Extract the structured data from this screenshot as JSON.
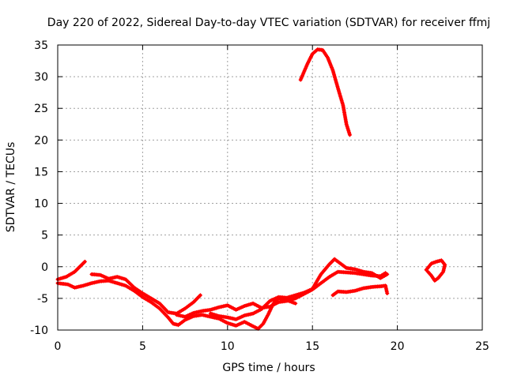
{
  "chart_data": {
    "type": "scatter",
    "title": "Day 220 of 2022, Sidereal Day-to-day VTEC variation (SDTVAR) for receiver ffmj",
    "xlabel": "GPS time / hours",
    "ylabel": "SDTVAR / TECUs",
    "xlim": [
      0,
      25
    ],
    "ylim": [
      -10,
      35
    ],
    "xticks": [
      0,
      5,
      10,
      15,
      20,
      25
    ],
    "yticks": [
      -10,
      -5,
      0,
      5,
      10,
      15,
      20,
      25,
      30,
      35
    ],
    "grid": true,
    "marker": "+",
    "series_color": "#ff0000",
    "series": [
      {
        "values": [
          [
            0.0,
            -2.0
          ],
          [
            0.5,
            -1.6
          ],
          [
            1.0,
            -0.8
          ],
          [
            1.3,
            0.0
          ],
          [
            1.6,
            0.8
          ]
        ]
      },
      {
        "values": [
          [
            0.0,
            -2.6
          ],
          [
            0.6,
            -2.8
          ],
          [
            1.0,
            -3.3
          ],
          [
            1.5,
            -3.0
          ],
          [
            2.0,
            -2.6
          ],
          [
            2.5,
            -2.3
          ],
          [
            3.0,
            -2.2
          ],
          [
            3.5,
            -2.6
          ],
          [
            4.0,
            -3.0
          ],
          [
            4.5,
            -3.8
          ],
          [
            5.0,
            -4.8
          ],
          [
            5.5,
            -5.6
          ],
          [
            6.0,
            -6.6
          ],
          [
            6.5,
            -8.0
          ],
          [
            6.8,
            -9.0
          ],
          [
            7.1,
            -9.2
          ],
          [
            7.5,
            -8.4
          ],
          [
            8.0,
            -7.8
          ],
          [
            8.5,
            -7.6
          ],
          [
            9.0,
            -7.9
          ],
          [
            9.5,
            -8.2
          ],
          [
            10.0,
            -8.9
          ],
          [
            10.5,
            -9.3
          ],
          [
            11.0,
            -8.7
          ],
          [
            11.5,
            -9.4
          ],
          [
            11.8,
            -9.8
          ],
          [
            12.1,
            -9.0
          ],
          [
            12.4,
            -7.5
          ],
          [
            12.7,
            -5.8
          ],
          [
            13.0,
            -5.0
          ],
          [
            13.5,
            -5.3
          ],
          [
            14.0,
            -5.8
          ]
        ]
      },
      {
        "values": [
          [
            2.0,
            -1.2
          ],
          [
            2.5,
            -1.3
          ],
          [
            3.0,
            -1.9
          ],
          [
            3.5,
            -1.6
          ],
          [
            4.0,
            -2.0
          ],
          [
            4.5,
            -3.3
          ],
          [
            5.0,
            -4.2
          ],
          [
            5.5,
            -5.0
          ],
          [
            6.0,
            -5.8
          ],
          [
            6.5,
            -7.2
          ],
          [
            7.0,
            -7.4
          ],
          [
            7.5,
            -6.6
          ],
          [
            8.0,
            -5.6
          ],
          [
            8.4,
            -4.5
          ]
        ]
      },
      {
        "values": [
          [
            7.0,
            -7.6
          ],
          [
            7.5,
            -7.9
          ],
          [
            8.0,
            -7.3
          ],
          [
            8.5,
            -7.0
          ],
          [
            9.0,
            -6.8
          ],
          [
            9.5,
            -6.4
          ],
          [
            10.0,
            -6.1
          ],
          [
            10.5,
            -6.8
          ],
          [
            11.0,
            -6.2
          ],
          [
            11.5,
            -5.8
          ],
          [
            12.0,
            -6.5
          ],
          [
            12.5,
            -6.3
          ],
          [
            13.0,
            -5.6
          ],
          [
            13.5,
            -5.4
          ],
          [
            14.0,
            -5.0
          ],
          [
            14.5,
            -4.3
          ],
          [
            15.0,
            -3.6
          ],
          [
            15.5,
            -2.6
          ],
          [
            16.0,
            -1.6
          ],
          [
            16.5,
            -0.8
          ],
          [
            17.0,
            -0.9
          ],
          [
            17.5,
            -1.0
          ],
          [
            18.0,
            -1.2
          ],
          [
            18.5,
            -1.4
          ],
          [
            19.0,
            -1.5
          ],
          [
            19.3,
            -1.0
          ]
        ]
      },
      {
        "values": [
          [
            9.0,
            -7.4
          ],
          [
            9.5,
            -7.8
          ],
          [
            10.0,
            -8.0
          ],
          [
            10.5,
            -8.3
          ],
          [
            11.0,
            -7.7
          ],
          [
            11.5,
            -7.4
          ],
          [
            12.0,
            -6.7
          ],
          [
            12.5,
            -5.4
          ],
          [
            13.0,
            -4.8
          ],
          [
            13.5,
            -4.9
          ],
          [
            14.0,
            -4.5
          ],
          [
            14.5,
            -4.1
          ],
          [
            15.0,
            -3.5
          ],
          [
            15.5,
            -1.2
          ],
          [
            16.0,
            0.4
          ],
          [
            16.3,
            1.2
          ],
          [
            16.6,
            0.6
          ],
          [
            17.0,
            -0.2
          ],
          [
            17.5,
            -0.4
          ],
          [
            18.0,
            -0.8
          ],
          [
            18.5,
            -1.0
          ],
          [
            19.0,
            -1.8
          ],
          [
            19.4,
            -1.2
          ]
        ]
      },
      {
        "values": [
          [
            16.2,
            -4.5
          ],
          [
            16.5,
            -3.9
          ],
          [
            17.0,
            -4.0
          ],
          [
            17.5,
            -3.8
          ],
          [
            18.0,
            -3.4
          ],
          [
            18.5,
            -3.2
          ],
          [
            19.0,
            -3.1
          ],
          [
            19.3,
            -3.0
          ],
          [
            19.4,
            -4.2
          ]
        ]
      },
      {
        "values": [
          [
            14.3,
            29.5
          ],
          [
            14.7,
            32.0
          ],
          [
            15.0,
            33.6
          ],
          [
            15.3,
            34.3
          ],
          [
            15.6,
            34.2
          ],
          [
            15.9,
            33.0
          ],
          [
            16.2,
            31.0
          ],
          [
            16.5,
            28.2
          ],
          [
            16.8,
            25.5
          ],
          [
            17.0,
            22.5
          ],
          [
            17.2,
            20.8
          ]
        ]
      },
      {
        "values": [
          [
            21.7,
            -0.5
          ],
          [
            22.0,
            0.5
          ],
          [
            22.3,
            0.8
          ],
          [
            22.6,
            1.0
          ],
          [
            22.8,
            0.3
          ],
          [
            22.7,
            -0.8
          ],
          [
            22.4,
            -1.8
          ],
          [
            22.2,
            -2.2
          ],
          [
            22.0,
            -1.4
          ],
          [
            21.8,
            -0.8
          ]
        ]
      }
    ]
  }
}
